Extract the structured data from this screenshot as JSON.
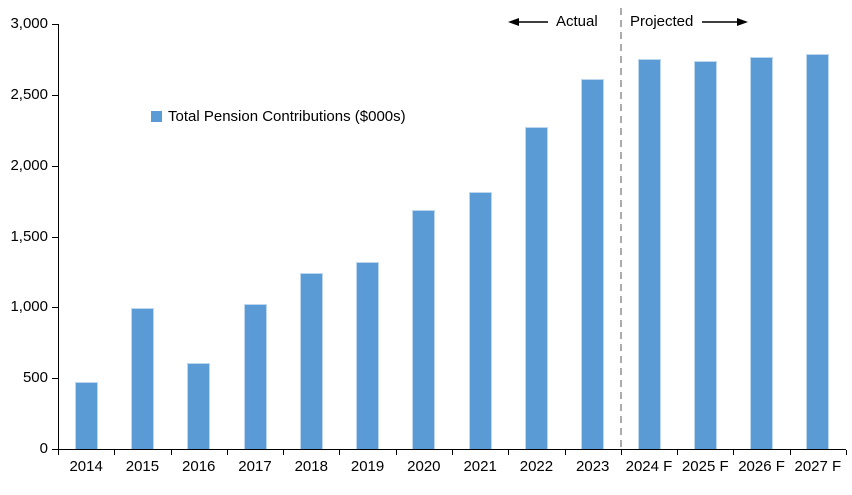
{
  "chart_data": {
    "type": "bar",
    "title": "",
    "legend": "Total Pension Contributions ($000s)",
    "categories": [
      "2014",
      "2015",
      "2016",
      "2017",
      "2018",
      "2019",
      "2020",
      "2021",
      "2022",
      "2023",
      "2024 F",
      "2025 F",
      "2026 F",
      "2027 F"
    ],
    "values": [
      475,
      995,
      610,
      1025,
      1240,
      1320,
      1685,
      1815,
      2275,
      2615,
      2750,
      2740,
      2765,
      2790
    ],
    "ylim": [
      0,
      3000
    ],
    "ytick_interval": 500,
    "ytick_labels": [
      "0",
      "500",
      "1,000",
      "1,500",
      "2,000",
      "2,500",
      "3,000"
    ],
    "grid": false,
    "legend_position": "inside-upper-left",
    "annotations": {
      "left_label": "Actual",
      "right_label": "Projected"
    },
    "divider_after_index": 9,
    "colors": {
      "bar": "#5B9BD5",
      "bar_edge": "#BDD7EE",
      "divider": "#ABABAB",
      "axis": "#000000",
      "text": "#000000"
    }
  }
}
